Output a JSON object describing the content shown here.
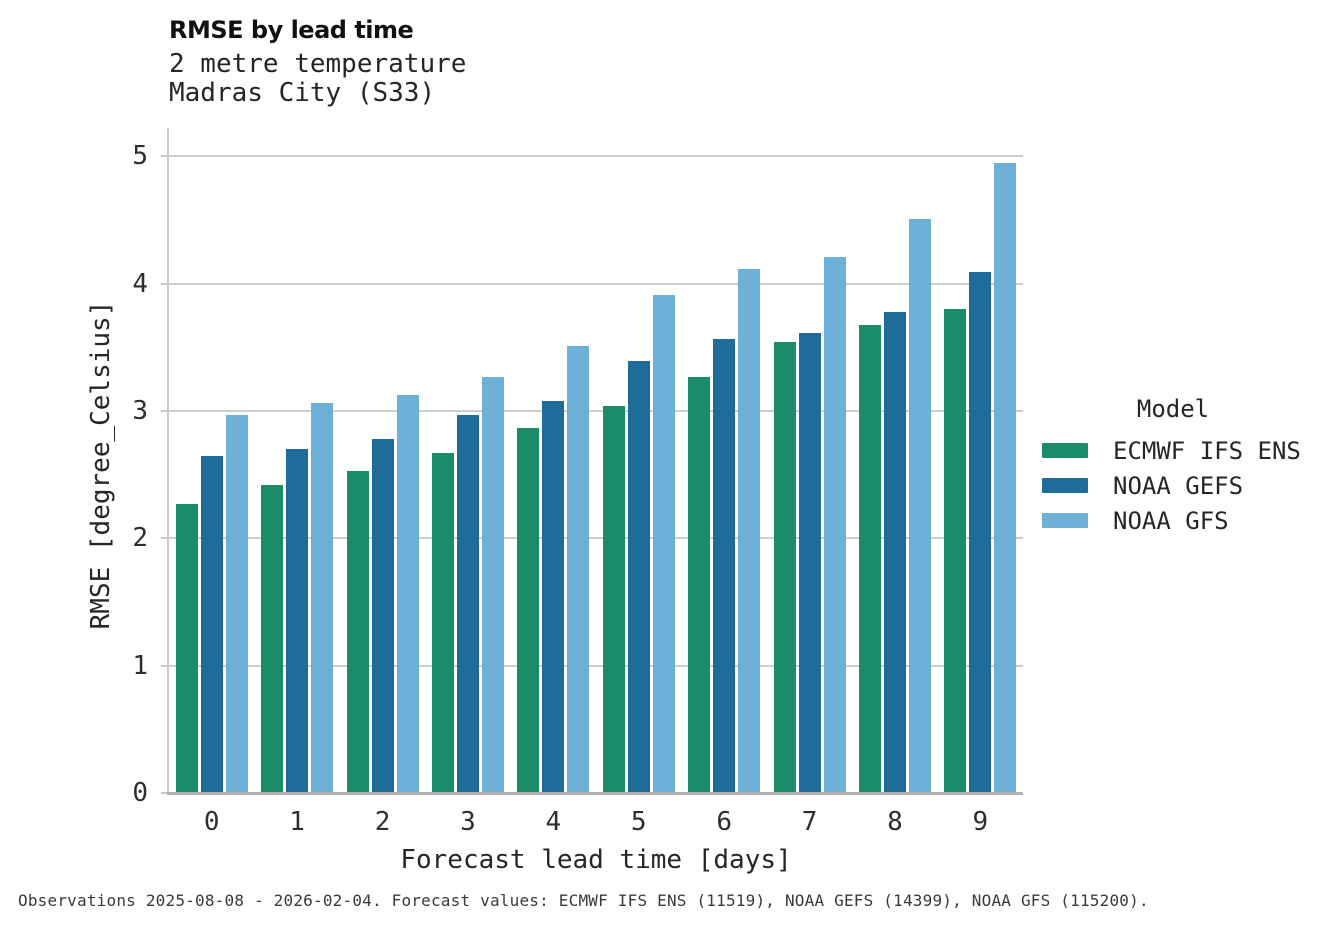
{
  "header": {
    "title": "RMSE by lead time",
    "subtitle_line1": "2 metre temperature",
    "subtitle_line2": "Madras City (S33)"
  },
  "chart_data": {
    "type": "bar",
    "title": "RMSE by lead time",
    "subtitle": [
      "2 metre temperature",
      "Madras City (S33)"
    ],
    "categories": [
      "0",
      "1",
      "2",
      "3",
      "4",
      "5",
      "6",
      "7",
      "8",
      "9"
    ],
    "series": [
      {
        "name": "ECMWF IFS ENS",
        "color": "#1a8c6a",
        "values": [
          2.27,
          2.42,
          2.53,
          2.67,
          2.87,
          3.04,
          3.27,
          3.54,
          3.68,
          3.8
        ]
      },
      {
        "name": "NOAA GEFS",
        "color": "#1f6c9b",
        "values": [
          2.65,
          2.7,
          2.78,
          2.97,
          3.08,
          3.39,
          3.57,
          3.61,
          3.78,
          4.09
        ]
      },
      {
        "name": "NOAA GFS",
        "color": "#6eb1d8",
        "values": [
          2.97,
          3.06,
          3.13,
          3.27,
          3.51,
          3.91,
          4.12,
          4.21,
          4.51,
          4.95
        ]
      }
    ],
    "xlabel": "Forecast lead time [days]",
    "ylabel": "RMSE [degree_Celsius]",
    "ylim": [
      0,
      5.2
    ],
    "yticks": [
      0,
      1,
      2,
      3,
      4,
      5
    ],
    "grid": true,
    "legend_title": "Model",
    "legend_position": "right",
    "grid_color": "#cdcdcd",
    "axis_color": "#b2b2b2"
  },
  "legend": {
    "title": "Model"
  },
  "caption": "Observations 2025-08-08 - 2026-02-04. Forecast values: ECMWF IFS ENS (11519), NOAA GEFS (14399), NOAA GFS (115200)."
}
